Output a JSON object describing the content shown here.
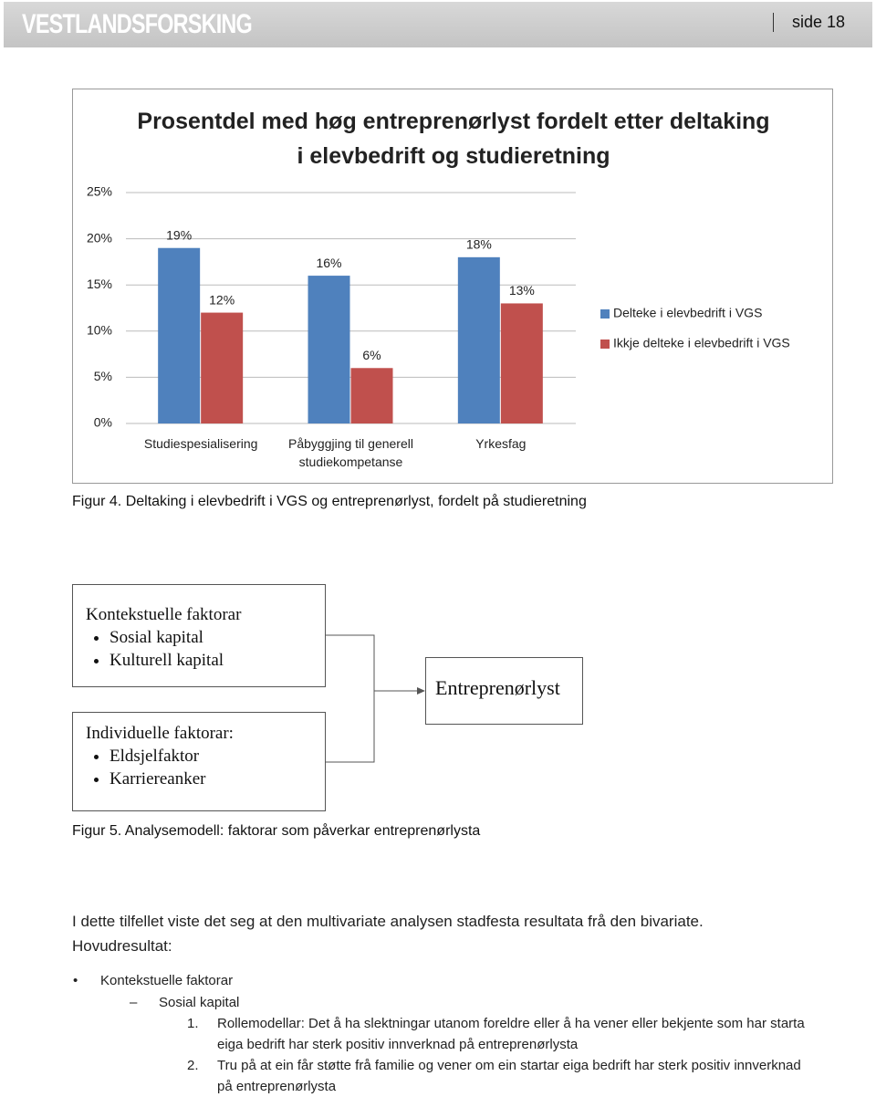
{
  "header": {
    "logo": "VESTLANDSFORSKING",
    "page": "side 18"
  },
  "chart_data": {
    "type": "bar",
    "title": "Prosentdel med høg entreprenørlyst fordelt etter deltaking i elevbedrift og studieretning",
    "categories": [
      "Studiespesialisering",
      "Påbyggjing til generell studiekompetanse",
      "Yrkesfag"
    ],
    "series": [
      {
        "name": "Delteke i elevbedrift i VGS",
        "color": "#4f81bd",
        "values": [
          19,
          16,
          18
        ],
        "value_labels": [
          "19%",
          "16%",
          "18%"
        ]
      },
      {
        "name": "Ikkje delteke i elevbedrift i VGS",
        "color": "#c0504d",
        "values": [
          12,
          6,
          13
        ],
        "value_labels": [
          "12%",
          "6%",
          "13%"
        ]
      }
    ],
    "ylim": [
      0,
      25
    ],
    "yticks": [
      {
        "value": 0,
        "label": "0%"
      },
      {
        "value": 5,
        "label": "5%"
      },
      {
        "value": 10,
        "label": "10%"
      },
      {
        "value": 15,
        "label": "15%"
      },
      {
        "value": 20,
        "label": "20%"
      },
      {
        "value": 25,
        "label": "25%"
      }
    ],
    "grid": true,
    "legend": "right"
  },
  "figure4_caption": "Figur 4. Deltaking i elevbedrift i VGS og entreprenørlyst, fordelt på studieretning",
  "diagram": {
    "boxes": [
      {
        "title": "Kontekstuelle faktorar",
        "items": [
          "Sosial kapital",
          "Kulturell kapital"
        ]
      },
      {
        "title": "Individuelle faktorar:",
        "items": [
          "Eldsjelfaktor",
          "Karriereanker"
        ]
      },
      {
        "title": "Entreprenørlyst"
      }
    ]
  },
  "figure5_caption": "Figur 5. Analysemodell: faktorar som påverkar entreprenørlysta",
  "body": {
    "paragraph": "I dette tilfellet viste det seg at den multivariate analysen stadfesta resultata frå den bivariate.",
    "heading": "Hovudresultat:",
    "bullet": "Kontekstuelle faktorar",
    "subitem": "Sosial kapital",
    "numbered": [
      {
        "number": "1.",
        "text": "Rollemodellar: Det å ha slektningar utanom foreldre eller å ha vener eller bekjente som har starta eiga bedrift har sterk positiv innverknad på entreprenørlysta"
      },
      {
        "number": "2.",
        "text": "Tru på at ein får støtte frå familie og vener om ein startar eiga bedrift har sterk positiv innverknad på entreprenørlysta"
      }
    ]
  }
}
